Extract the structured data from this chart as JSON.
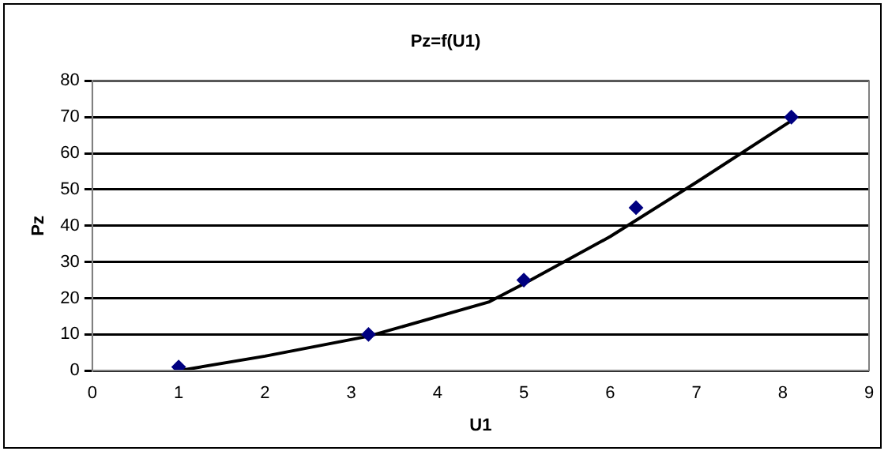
{
  "chart_data": {
    "type": "scatter",
    "title": "Pz=f(U1)",
    "xlabel": "U1",
    "ylabel": "Pz",
    "xlim": [
      0,
      9
    ],
    "xticks": [
      0,
      1,
      2,
      3,
      4,
      5,
      6,
      7,
      8,
      9
    ],
    "ylim": [
      0,
      80
    ],
    "yticks": [
      0,
      10,
      20,
      30,
      40,
      50,
      60,
      70,
      80
    ],
    "grid": "y",
    "legend": false,
    "marker": "diamond",
    "series": [
      {
        "color": "#000080",
        "x": [
          1,
          3.2,
          5,
          6.3,
          8.1
        ],
        "values": [
          1,
          10,
          25,
          45,
          70
        ]
      },
      {
        "type": "line",
        "color": "#000000",
        "marker": "none",
        "x": [
          1,
          2,
          3.2,
          4.6,
          5,
          6,
          7,
          8.1
        ],
        "values": [
          0,
          4,
          9.5,
          19,
          24,
          37,
          52,
          69
        ]
      }
    ]
  }
}
